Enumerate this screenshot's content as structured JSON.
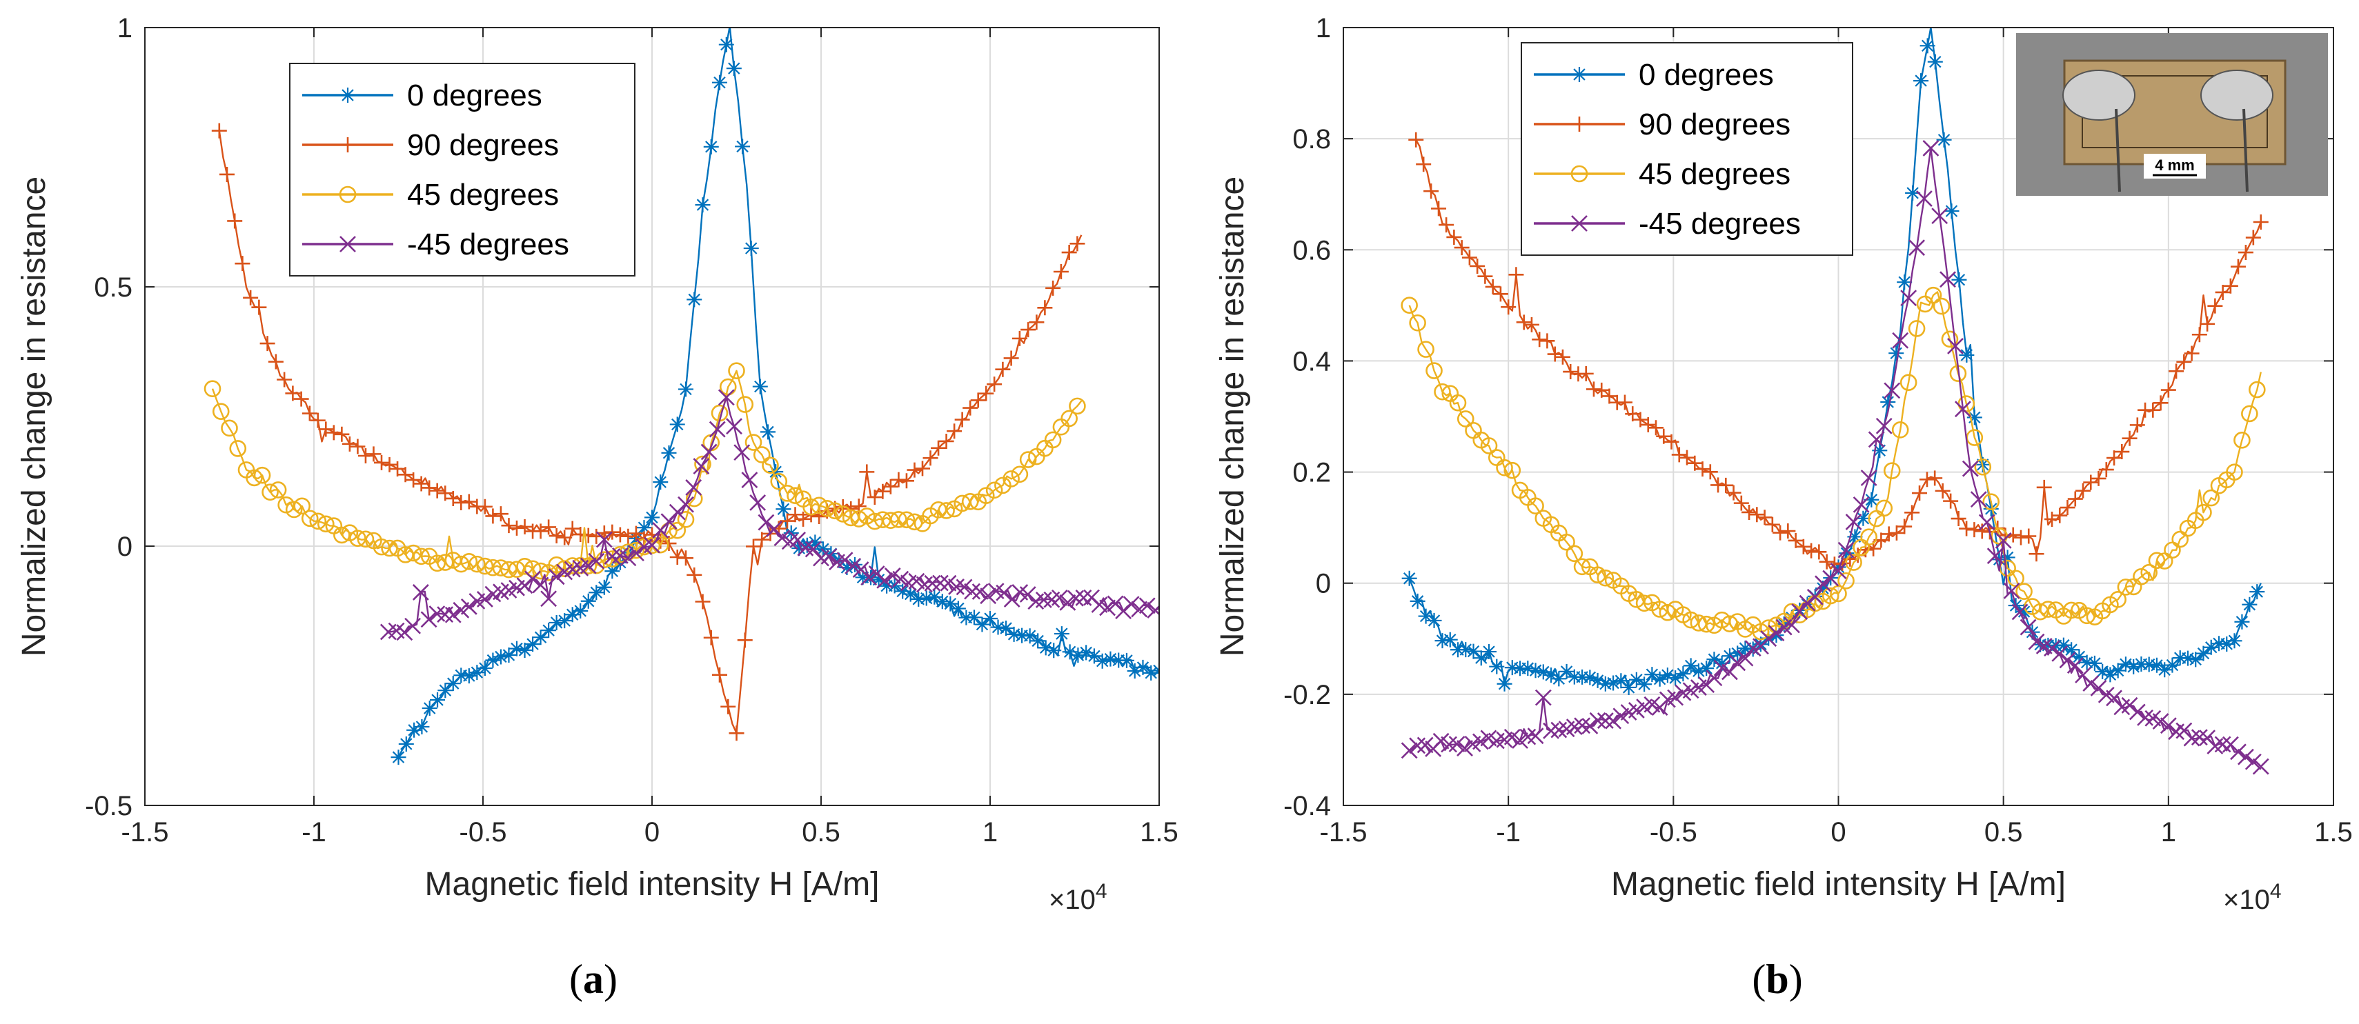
{
  "chart_data": [
    {
      "type": "scatter",
      "panel_label": "a",
      "xlabel": "Magnetic field intensity H [A/m]",
      "ylabel": "Normalized change in resistance",
      "x_multiplier": "×10^4",
      "xlim": [
        -1.5,
        1.5
      ],
      "ylim": [
        -0.5,
        1
      ],
      "xticks": [
        -1.5,
        -1,
        -0.5,
        0,
        0.5,
        1,
        1.5
      ],
      "yticks": [
        -0.5,
        0,
        0.5,
        1
      ],
      "xtick_labels": [
        "-1.5",
        "-1",
        "-0.5",
        "0",
        "0.5",
        "1",
        "1.5"
      ],
      "ytick_labels": [
        "-0.5",
        "0",
        "0.5",
        "1"
      ],
      "grid": true,
      "legend_position": "top-left",
      "series": [
        {
          "name": "0 degrees",
          "color": "#0072BD",
          "marker": "asterisk",
          "x": [
            -0.75,
            -0.6,
            -0.4,
            -0.2,
            0.0,
            0.1,
            0.15,
            0.2,
            0.23,
            0.28,
            0.32,
            0.4,
            0.6,
            0.8,
            1.0,
            1.2,
            1.5
          ],
          "y": [
            -0.4,
            -0.27,
            -0.2,
            -0.12,
            0.05,
            0.3,
            0.65,
            0.9,
            1.0,
            0.7,
            0.3,
            0.03,
            -0.05,
            -0.1,
            -0.15,
            -0.2,
            -0.24
          ]
        },
        {
          "name": "90 degrees",
          "color": "#D95319",
          "marker": "plus",
          "x": [
            -1.28,
            -1.2,
            -1.1,
            -1.0,
            -0.8,
            -0.6,
            -0.4,
            -0.2,
            0.0,
            0.1,
            0.15,
            0.2,
            0.25,
            0.3,
            0.4,
            0.6,
            0.8,
            1.0,
            1.15,
            1.27
          ],
          "y": [
            0.8,
            0.5,
            0.33,
            0.25,
            0.16,
            0.1,
            0.04,
            0.02,
            0.02,
            -0.02,
            -0.1,
            -0.25,
            -0.37,
            0.0,
            0.05,
            0.08,
            0.15,
            0.3,
            0.45,
            0.6
          ]
        },
        {
          "name": "45 degrees",
          "color": "#EDB120",
          "marker": "circle",
          "x": [
            -1.3,
            -1.2,
            -1.0,
            -0.8,
            -0.6,
            -0.4,
            -0.2,
            0.0,
            0.1,
            0.2,
            0.25,
            0.3,
            0.4,
            0.6,
            0.8,
            1.0,
            1.15,
            1.27
          ],
          "y": [
            0.3,
            0.15,
            0.05,
            0.0,
            -0.03,
            -0.05,
            -0.04,
            0.0,
            0.05,
            0.25,
            0.35,
            0.2,
            0.1,
            0.05,
            0.05,
            0.1,
            0.18,
            0.28
          ]
        },
        {
          "name": "-45 degrees",
          "color": "#7E2F8E",
          "marker": "x",
          "x": [
            -0.78,
            -0.6,
            -0.4,
            -0.2,
            0.0,
            0.1,
            0.18,
            0.22,
            0.3,
            0.35,
            0.5,
            0.7,
            0.9,
            1.1,
            1.3,
            1.5
          ],
          "y": [
            -0.17,
            -0.13,
            -0.08,
            -0.04,
            0.0,
            0.08,
            0.2,
            0.28,
            0.1,
            0.03,
            -0.02,
            -0.06,
            -0.08,
            -0.1,
            -0.11,
            -0.12
          ]
        }
      ]
    },
    {
      "type": "scatter",
      "panel_label": "b",
      "xlabel": "Magnetic field intensity H [A/m]",
      "ylabel": "Normalized change in resistance",
      "x_multiplier": "×10^4",
      "xlim": [
        -1.5,
        1.5
      ],
      "ylim": [
        -0.4,
        1
      ],
      "xticks": [
        -1.5,
        -1,
        -0.5,
        0,
        0.5,
        1,
        1.5
      ],
      "yticks": [
        -0.4,
        -0.2,
        0,
        0.2,
        0.4,
        0.6,
        0.8,
        1
      ],
      "xtick_labels": [
        "-1.5",
        "-1",
        "-0.5",
        "0",
        "0.5",
        "1",
        "1.5"
      ],
      "ytick_labels": [
        "-0.4",
        "-0.2",
        "0",
        "0.2",
        "0.4",
        "0.6",
        "0.8",
        "1"
      ],
      "grid": true,
      "legend_position": "top-left",
      "inset_caption": "4 mm",
      "series": [
        {
          "name": "0 degrees",
          "color": "#0072BD",
          "marker": "asterisk",
          "x": [
            -1.3,
            -1.2,
            -1.0,
            -0.8,
            -0.6,
            -0.4,
            -0.2,
            0.0,
            0.1,
            0.2,
            0.25,
            0.28,
            0.32,
            0.4,
            0.5,
            0.6,
            0.8,
            1.0,
            1.2,
            1.28
          ],
          "y": [
            0.0,
            -0.1,
            -0.15,
            -0.17,
            -0.18,
            -0.15,
            -0.1,
            0.02,
            0.15,
            0.5,
            0.9,
            1.0,
            0.8,
            0.35,
            0.0,
            -0.1,
            -0.15,
            -0.15,
            -0.1,
            0.0
          ]
        },
        {
          "name": "90 degrees",
          "color": "#D95319",
          "marker": "plus",
          "x": [
            -1.28,
            -1.2,
            -1.0,
            -0.8,
            -0.6,
            -0.4,
            -0.2,
            0.0,
            0.2,
            0.28,
            0.4,
            0.6,
            0.8,
            1.0,
            1.2,
            1.28
          ],
          "y": [
            0.8,
            0.65,
            0.5,
            0.38,
            0.3,
            0.2,
            0.1,
            0.03,
            0.1,
            0.2,
            0.1,
            0.08,
            0.2,
            0.35,
            0.55,
            0.65
          ]
        },
        {
          "name": "45 degrees",
          "color": "#EDB120",
          "marker": "circle",
          "x": [
            -1.3,
            -1.2,
            -1.0,
            -0.8,
            -0.6,
            -0.4,
            -0.2,
            0.0,
            0.15,
            0.25,
            0.3,
            0.4,
            0.5,
            0.6,
            0.8,
            1.0,
            1.2,
            1.28
          ],
          "y": [
            0.5,
            0.35,
            0.2,
            0.05,
            -0.03,
            -0.07,
            -0.08,
            -0.02,
            0.15,
            0.5,
            0.52,
            0.3,
            0.05,
            -0.05,
            -0.05,
            0.05,
            0.2,
            0.38
          ]
        },
        {
          "name": "-45 degrees",
          "color": "#7E2F8E",
          "marker": "x",
          "x": [
            -1.3,
            -1.0,
            -0.8,
            -0.6,
            -0.4,
            -0.2,
            0.0,
            0.15,
            0.25,
            0.28,
            0.32,
            0.4,
            0.5,
            0.6,
            0.8,
            1.0,
            1.2,
            1.28
          ],
          "y": [
            -0.3,
            -0.28,
            -0.26,
            -0.23,
            -0.18,
            -0.1,
            0.02,
            0.3,
            0.65,
            0.78,
            0.6,
            0.2,
            0.0,
            -0.1,
            -0.2,
            -0.26,
            -0.3,
            -0.33
          ]
        }
      ]
    }
  ]
}
